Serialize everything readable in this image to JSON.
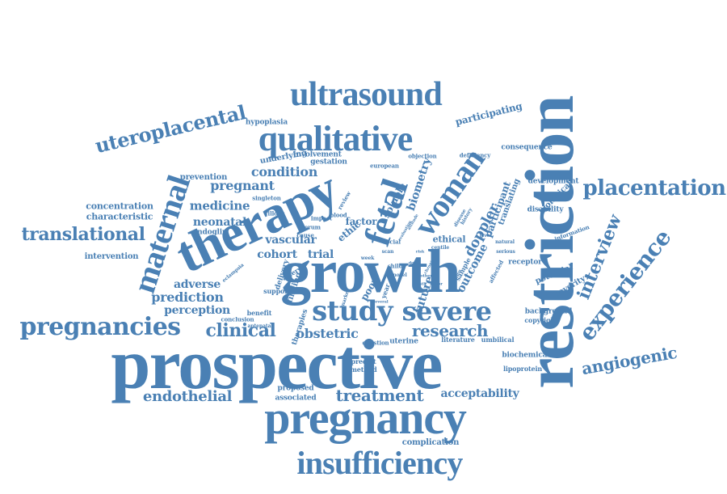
{
  "colors": {
    "word": "#4a80b4",
    "background": "#ffffff"
  },
  "words": [
    "restriction",
    "prospective",
    "growth",
    "therapy",
    "pregnancy",
    "insufficiency",
    "ultrasound",
    "qualitative",
    "fetal",
    "woman",
    "maternal",
    "study",
    "severe",
    "pregnancies",
    "placentation",
    "experience",
    "uteroplacental",
    "translational",
    "interview",
    "angiogenic",
    "clinical",
    "endothelial",
    "treatment",
    "research",
    "prediction",
    "obstetric",
    "condition",
    "pregnant",
    "medicine",
    "neonatal",
    "vascular",
    "cohort",
    "trial",
    "adverse",
    "perception",
    "acceptability",
    "participating",
    "concentration",
    "characteristic",
    "intervention",
    "doppler",
    "outcome",
    "biometry",
    "soluble",
    "future",
    "poor",
    "ethic",
    "ethical",
    "factor",
    "participant",
    "translating",
    "complication",
    "associated",
    "proposed",
    "underlying",
    "prevention",
    "hypoplasia",
    "involvement",
    "gestation",
    "endoglin",
    "potential",
    "severity",
    "biological",
    "development",
    "consequence",
    "receptor",
    "background",
    "copyright",
    "biochemical",
    "lipoprotein",
    "benefit",
    "support",
    "delivery",
    "artery",
    "conclusion",
    "method",
    "predict",
    "uterine",
    "literature",
    "umbilical",
    "question",
    "sample",
    "affected",
    "information",
    "disability",
    "deficiency",
    "objection",
    "european",
    "singleton",
    "villous",
    "serum",
    "impact",
    "blood",
    "cause",
    "review",
    "social",
    "finding",
    "antenatal",
    "therapies",
    "eclampsia",
    "disease",
    "history",
    "marker",
    "centile",
    "natural",
    "serious",
    "child",
    "year",
    "week",
    "level",
    "novel",
    "several",
    "mother",
    "scan",
    "risk",
    "chronic",
    "attitude",
    "evaluation",
    "dose",
    "function",
    "major",
    "death"
  ]
}
